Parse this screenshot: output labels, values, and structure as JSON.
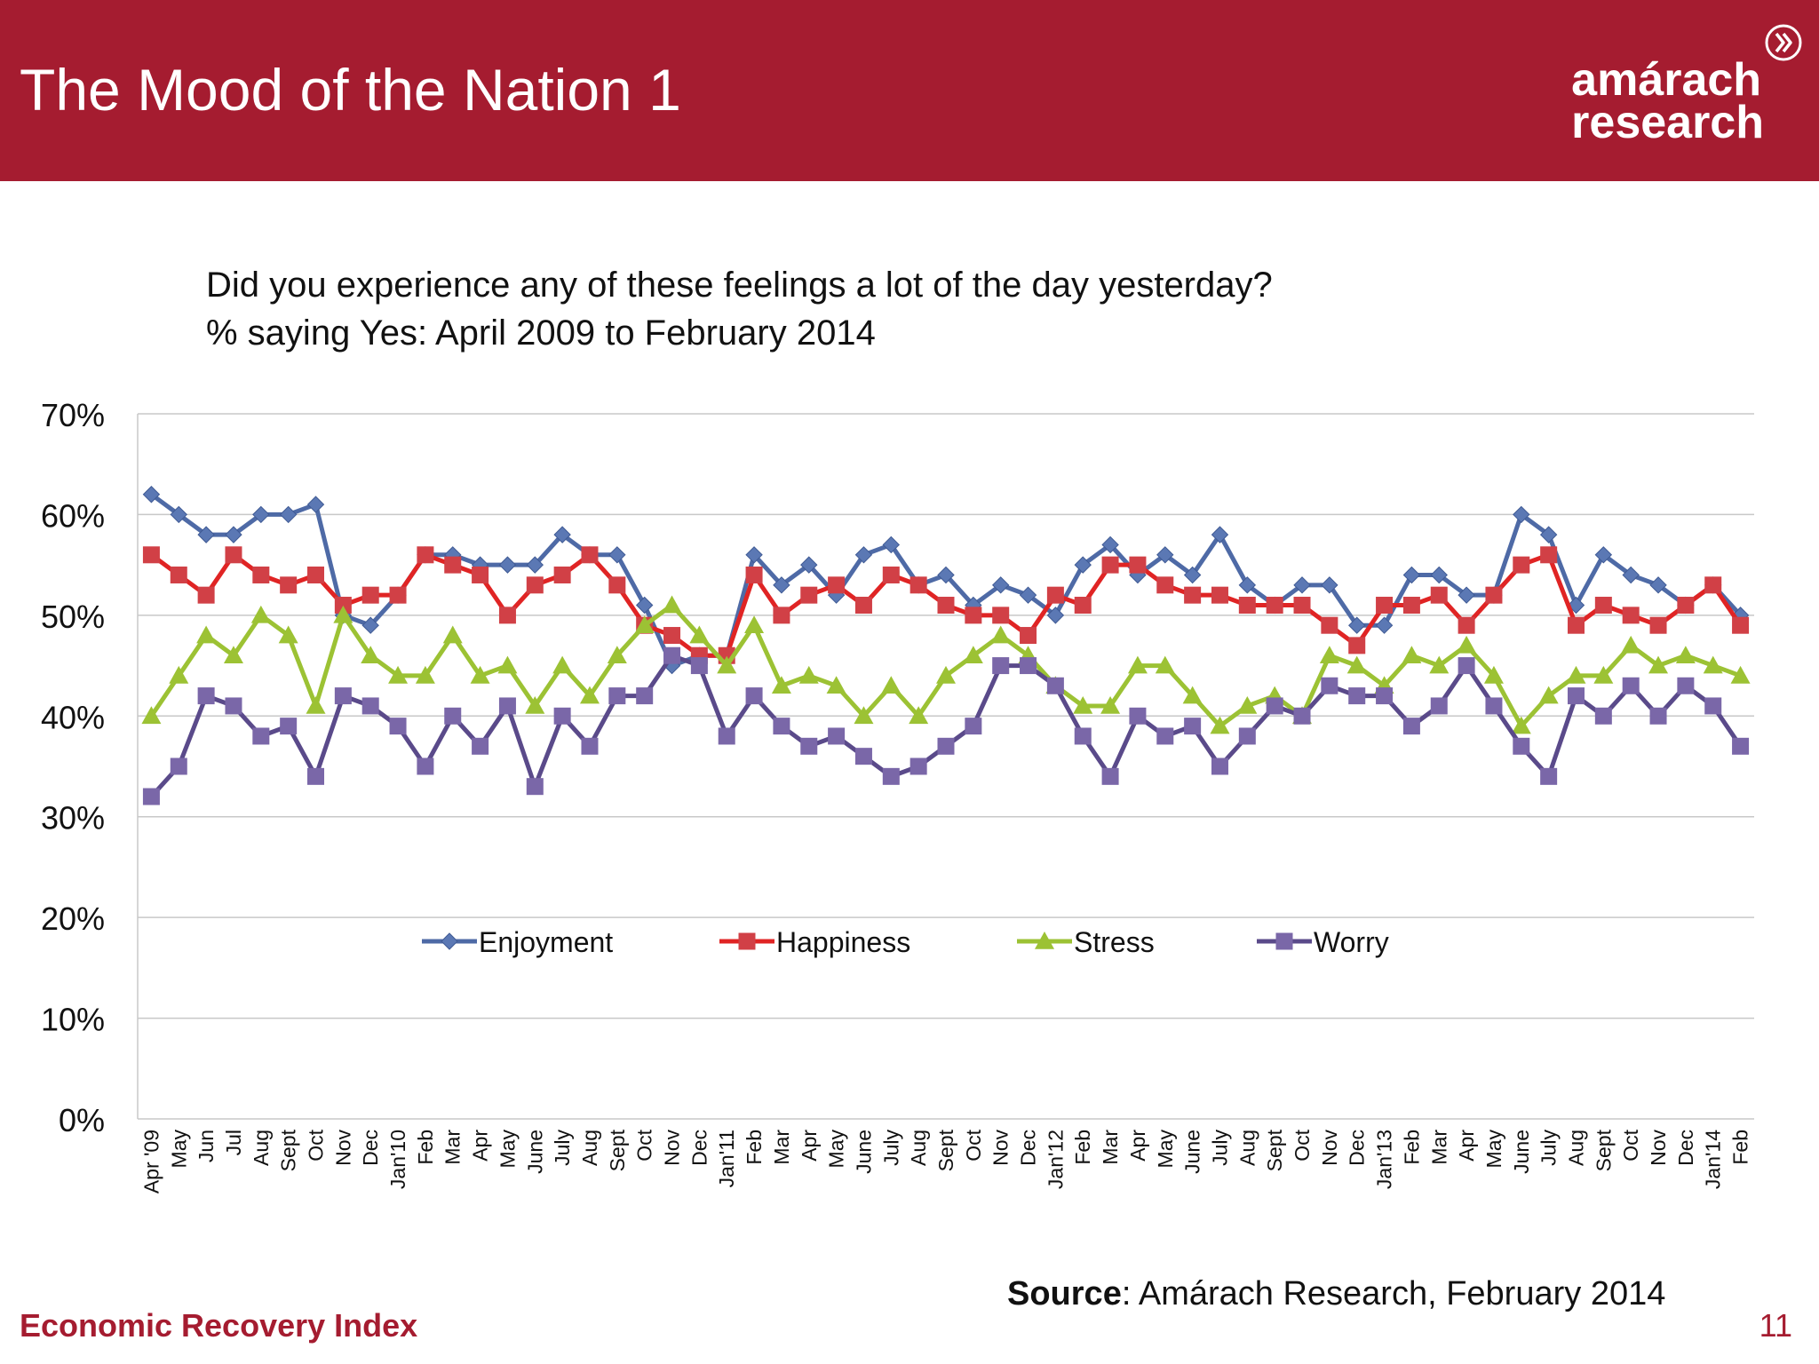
{
  "header": {
    "title": "The Mood of the Nation 1",
    "logo_line1": "amárach",
    "logo_line2": "research"
  },
  "question": {
    "line1": "Did you experience any of these feelings a lot of the day yesterday?",
    "line2": "% saying Yes: April 2009 to February 2014"
  },
  "source": {
    "label": "Source",
    "text": ": Amárach Research, February 2014"
  },
  "footer": {
    "left": "Economic Recovery Index",
    "page": "11"
  },
  "colors": {
    "header_bg": "#a51c30",
    "enjoyment": "#5b78b4",
    "enjoyment_line": "#4e6aa6",
    "happiness": "#d14046",
    "happiness_line": "#e02424",
    "stress": "#9cc234",
    "worry": "#7a67a8",
    "worry_line": "#5a4a8a",
    "grid": "#c8c8c8"
  },
  "chart_data": {
    "type": "line",
    "ylim": [
      0,
      70
    ],
    "yticks": [
      "0%",
      "10%",
      "20%",
      "30%",
      "40%",
      "50%",
      "60%",
      "70%"
    ],
    "grid": true,
    "legend_position": "center",
    "categories": [
      "Apr '09",
      "May",
      "Jun",
      "Jul",
      "Aug",
      "Sept",
      "Oct",
      "Nov",
      "Dec",
      "Jan'10",
      "Feb",
      "Mar",
      "Apr",
      "May",
      "June",
      "July",
      "Aug",
      "Sept",
      "Oct",
      "Nov",
      "Dec",
      "Jan'11",
      "Feb",
      "Mar",
      "Apr",
      "May",
      "June",
      "July",
      "Aug",
      "Sept",
      "Oct",
      "Nov",
      "Dec",
      "Jan'12",
      "Feb",
      "Mar",
      "Apr",
      "May",
      "June",
      "July",
      "Aug",
      "Sept",
      "Oct",
      "Nov",
      "Dec",
      "Jan'13",
      "Feb",
      "Mar",
      "Apr",
      "May",
      "June",
      "July",
      "Aug",
      "Sept",
      "Oct",
      "Nov",
      "Dec",
      "Jan'14",
      "Feb"
    ],
    "series": [
      {
        "name": "Enjoyment",
        "marker": "diamond",
        "values": [
          62,
          60,
          58,
          58,
          60,
          60,
          61,
          50,
          49,
          52,
          56,
          56,
          55,
          55,
          55,
          58,
          56,
          56,
          51,
          45,
          46,
          46,
          56,
          53,
          55,
          52,
          56,
          57,
          53,
          54,
          51,
          53,
          52,
          50,
          55,
          57,
          54,
          56,
          54,
          58,
          53,
          51,
          53,
          53,
          49,
          49,
          54,
          54,
          52,
          52,
          60,
          58,
          51,
          56,
          54,
          53,
          51,
          53,
          50
        ]
      },
      {
        "name": "Happiness",
        "marker": "square",
        "values": [
          56,
          54,
          52,
          56,
          54,
          53,
          54,
          51,
          52,
          52,
          56,
          55,
          54,
          50,
          53,
          54,
          56,
          53,
          49,
          48,
          46,
          46,
          54,
          50,
          52,
          53,
          51,
          54,
          53,
          51,
          50,
          50,
          48,
          52,
          51,
          55,
          55,
          53,
          52,
          52,
          51,
          51,
          51,
          49,
          47,
          51,
          51,
          52,
          49,
          52,
          55,
          56,
          49,
          51,
          50,
          49,
          51,
          53,
          49
        ]
      },
      {
        "name": "Stress",
        "marker": "triangle",
        "values": [
          40,
          44,
          48,
          46,
          50,
          48,
          41,
          50,
          46,
          44,
          44,
          48,
          44,
          45,
          41,
          45,
          42,
          46,
          49,
          51,
          48,
          45,
          49,
          43,
          44,
          43,
          40,
          43,
          40,
          44,
          46,
          48,
          46,
          43,
          41,
          41,
          45,
          45,
          42,
          39,
          41,
          42,
          40,
          46,
          45,
          43,
          46,
          45,
          47,
          44,
          39,
          42,
          44,
          44,
          47,
          45,
          46,
          45,
          44
        ]
      },
      {
        "name": "Worry",
        "marker": "square",
        "values": [
          32,
          35,
          42,
          41,
          38,
          39,
          34,
          42,
          41,
          39,
          35,
          40,
          37,
          41,
          33,
          40,
          37,
          42,
          42,
          46,
          45,
          38,
          42,
          39,
          37,
          38,
          36,
          34,
          35,
          37,
          39,
          45,
          45,
          43,
          38,
          34,
          40,
          38,
          39,
          35,
          38,
          41,
          40,
          43,
          42,
          42,
          39,
          41,
          45,
          41,
          37,
          34,
          42,
          40,
          43,
          40,
          43,
          41,
          37
        ]
      }
    ]
  }
}
